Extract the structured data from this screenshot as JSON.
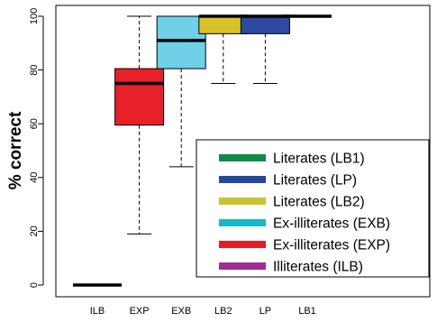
{
  "chart_data": {
    "type": "box",
    "title": "",
    "xlabel": "",
    "ylabel": "% correct",
    "ylim": [
      0,
      100
    ],
    "y_ticks": [
      0,
      20,
      40,
      60,
      80,
      100
    ],
    "grid": false,
    "legend_position": "bottom-right",
    "categories": [
      "ILB",
      "EXP",
      "EXB",
      "LB2",
      "LP",
      "LB1"
    ],
    "boxes": [
      {
        "category": "ILB",
        "min": 0,
        "q1": 0,
        "median": 0,
        "q3": 0,
        "max": 0,
        "color": "#a0309a"
      },
      {
        "category": "EXP",
        "min": 19,
        "q1": 59.5,
        "median": 75,
        "q3": 80.5,
        "max": 100,
        "color": "#e8202a"
      },
      {
        "category": "EXB",
        "min": 44,
        "q1": 80.5,
        "median": 91,
        "q3": 100,
        "max": 100,
        "color": "#6fd0e8"
      },
      {
        "category": "LB2",
        "min": 75,
        "q1": 93.5,
        "median": 100,
        "q3": 100,
        "max": 100,
        "color": "#d8c22a"
      },
      {
        "category": "LP",
        "min": 75,
        "q1": 93.5,
        "median": 100,
        "q3": 100,
        "max": 100,
        "color": "#2c4aa0"
      },
      {
        "category": "LB1",
        "min": 100,
        "q1": 100,
        "median": 100,
        "q3": 100,
        "max": 100,
        "color": "#1a8a4a"
      }
    ],
    "legend": [
      {
        "label": "Literates (LB1)",
        "color": "#118a48"
      },
      {
        "label": "Literates (LP)",
        "color": "#27479d"
      },
      {
        "label": "Literates (LB2)",
        "color": "#c8c431"
      },
      {
        "label": "Ex-illiterates (EXB)",
        "color": "#17b8c9"
      },
      {
        "label": "Ex-illiterates (EXP)",
        "color": "#e21f26"
      },
      {
        "label": "Illiterates (ILB)",
        "color": "#a02c96"
      }
    ]
  }
}
